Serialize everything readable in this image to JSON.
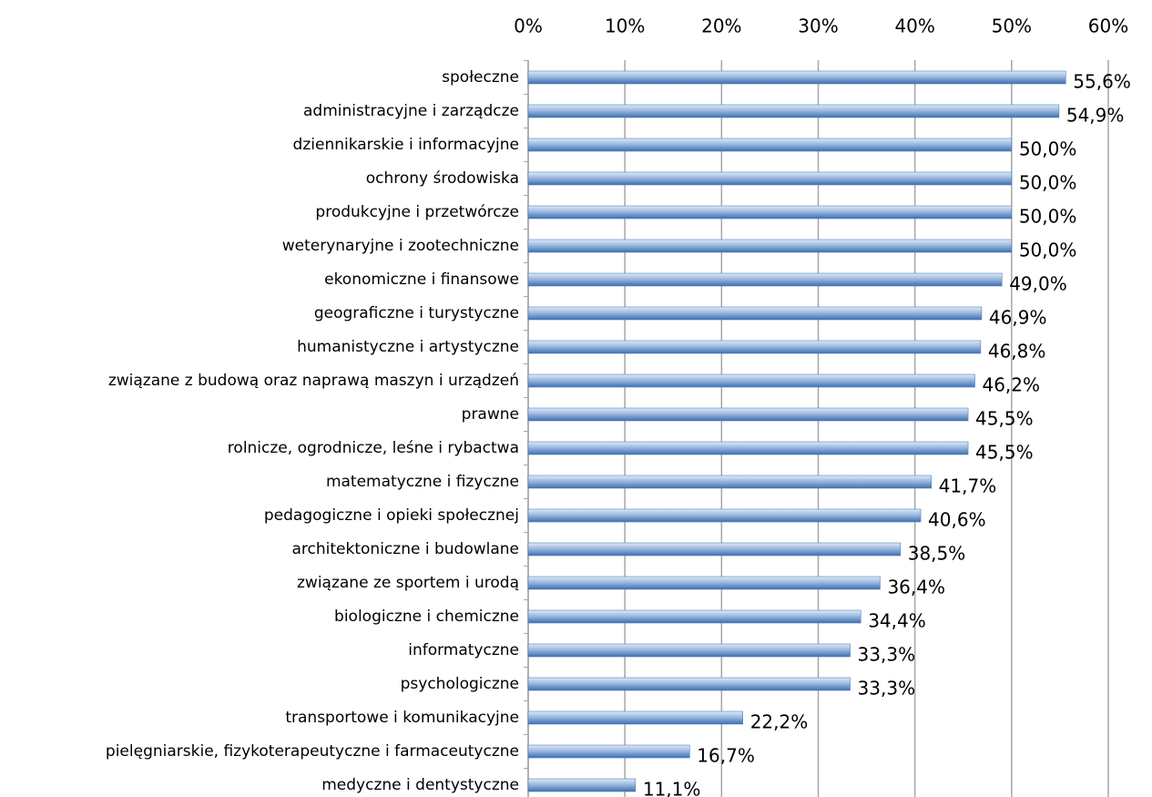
{
  "chart_data": {
    "type": "bar",
    "orientation": "horizontal",
    "categories": [
      "społeczne",
      "administracyjne i zarządcze",
      "dziennikarskie i informacyjne",
      "ochrony środowiska",
      "produkcyjne i przetwórcze",
      "weterynaryjne i zootechniczne",
      "ekonomiczne i finansowe",
      "geograficzne i turystyczne",
      "humanistyczne i artystyczne",
      "związane z budową oraz naprawą maszyn i urządzeń",
      "prawne",
      "rolnicze, ogrodnicze, leśne i rybactwa",
      "matematyczne i fizyczne",
      "pedagogiczne i opieki społecznej",
      "architektoniczne i budowlane",
      "związane ze sportem i urodą",
      "biologiczne i chemiczne",
      "informatyczne",
      "psychologiczne",
      "transportowe i komunikacyjne",
      "pielęgniarskie, fizykoterapeutyczne i farmaceutyczne",
      "medyczne i dentystyczne"
    ],
    "values": [
      55.6,
      54.9,
      50.0,
      50.0,
      50.0,
      50.0,
      49.0,
      46.9,
      46.8,
      46.2,
      45.5,
      45.5,
      41.7,
      40.6,
      38.5,
      36.4,
      34.4,
      33.3,
      33.3,
      22.2,
      16.7,
      11.1
    ],
    "value_labels": [
      "55,6%",
      "54,9%",
      "50,0%",
      "50,0%",
      "50,0%",
      "50,0%",
      "49,0%",
      "46,9%",
      "46,8%",
      "46,2%",
      "45,5%",
      "45,5%",
      "41,7%",
      "40,6%",
      "38,5%",
      "36,4%",
      "34,4%",
      "33,3%",
      "33,3%",
      "22,2%",
      "16,7%",
      "11,1%"
    ],
    "color": "#4f81bd",
    "xlim": [
      0,
      60
    ],
    "xticks": [
      {
        "value": 0,
        "label": "0%"
      },
      {
        "value": 10,
        "label": "10%"
      },
      {
        "value": 20,
        "label": "20%"
      },
      {
        "value": 30,
        "label": "30%"
      },
      {
        "value": 40,
        "label": "40%"
      },
      {
        "value": 50,
        "label": "50%"
      },
      {
        "value": 60,
        "label": "60%"
      }
    ],
    "grid": true
  }
}
